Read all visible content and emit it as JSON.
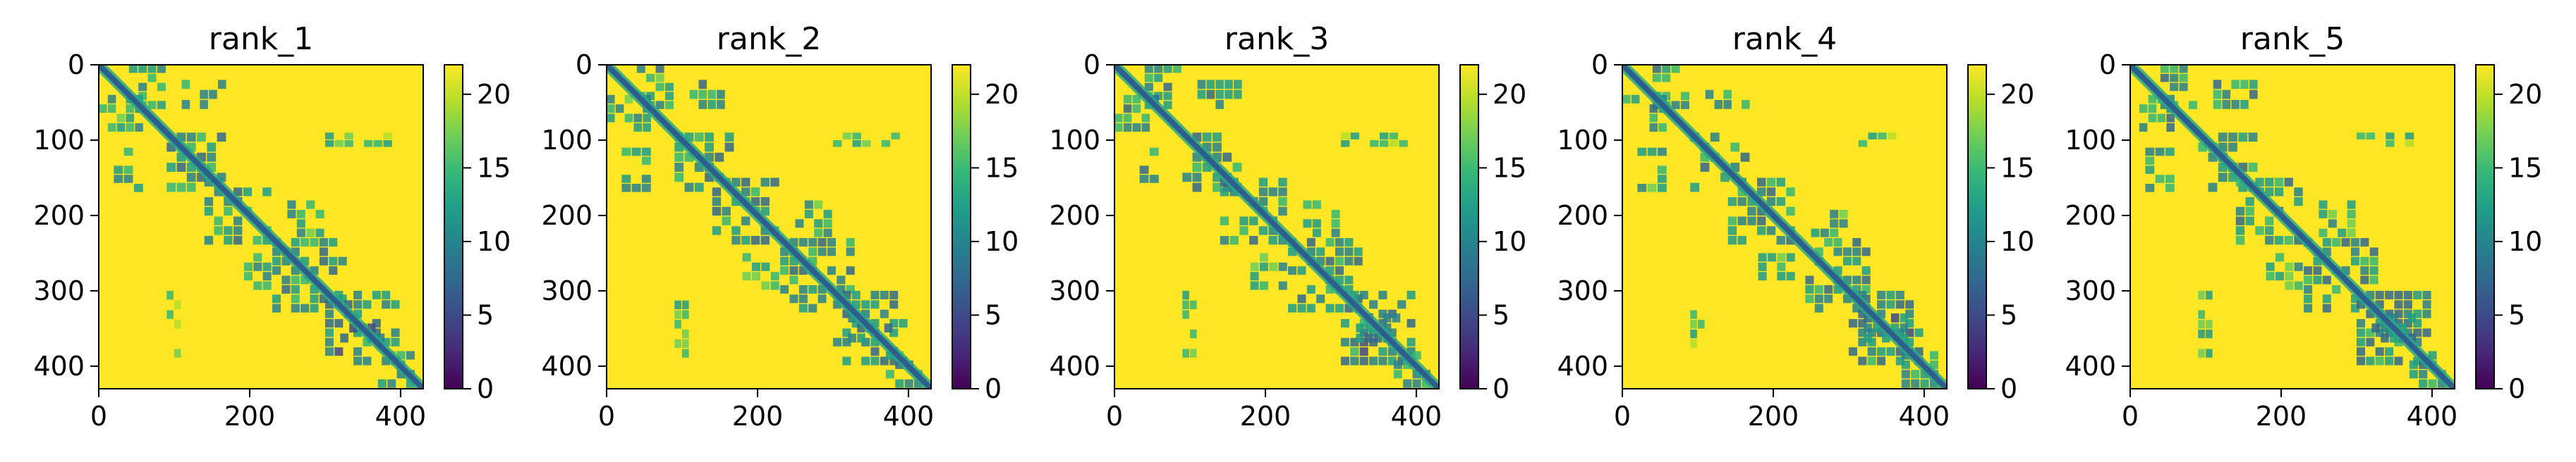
{
  "figure": {
    "colors": {
      "viridis": [
        "#440154",
        "#482878",
        "#3e4989",
        "#31688e",
        "#26828e",
        "#1f9e89",
        "#35b779",
        "#6ece58",
        "#b5de2b",
        "#fde725"
      ],
      "background": "#fde725",
      "diagonal": "#2e5f8c",
      "contact": "#26a58a",
      "contact_light": "#7fd34e"
    }
  },
  "chart_data": [
    {
      "type": "heatmap",
      "title": "rank_1",
      "x_ticks": [
        "0",
        "200",
        "400"
      ],
      "y_ticks": [
        "0",
        "100",
        "200",
        "300",
        "400"
      ],
      "xlim": [
        0,
        430
      ],
      "ylim": [
        430,
        0
      ],
      "colorbar": {
        "ticks": [
          "0",
          "5",
          "10",
          "15",
          "20"
        ],
        "range": [
          0,
          22
        ]
      },
      "matrix_size": 430,
      "diagonal_value": 4,
      "background_value": 22,
      "blocks": [
        {
          "x": [
            40,
            90
          ],
          "y": [
            0,
            60
          ],
          "value": 12
        },
        {
          "x": [
            0,
            60
          ],
          "y": [
            40,
            90
          ],
          "value": 12
        },
        {
          "x": [
            90,
            170
          ],
          "y": [
            90,
            170
          ],
          "value": 11
        },
        {
          "x": [
            20,
            60
          ],
          "y": [
            110,
            170
          ],
          "value": 12
        },
        {
          "x": [
            110,
            170
          ],
          "y": [
            20,
            60
          ],
          "value": 12
        },
        {
          "x": [
            140,
            230
          ],
          "y": [
            150,
            240
          ],
          "value": 11
        },
        {
          "x": [
            230,
            330
          ],
          "y": [
            230,
            330
          ],
          "value": 11
        },
        {
          "x": [
            300,
            400
          ],
          "y": [
            300,
            400
          ],
          "value": 10
        },
        {
          "x": [
            320,
            380
          ],
          "y": [
            330,
            370
          ],
          "value": 9
        },
        {
          "x": [
            370,
            420
          ],
          "y": [
            380,
            430
          ],
          "value": 12
        },
        {
          "x": [
            90,
            110
          ],
          "y": [
            300,
            390
          ],
          "value": 15
        },
        {
          "x": [
            300,
            390
          ],
          "y": [
            90,
            110
          ],
          "value": 15
        },
        {
          "x": [
            250,
            300
          ],
          "y": [
            180,
            230
          ],
          "value": 14
        },
        {
          "x": [
            180,
            230
          ],
          "y": [
            250,
            300
          ],
          "value": 14
        }
      ]
    },
    {
      "type": "heatmap",
      "title": "rank_2",
      "x_ticks": [
        "0",
        "200",
        "400"
      ],
      "y_ticks": [
        "0",
        "100",
        "200",
        "300",
        "400"
      ],
      "xlim": [
        0,
        430
      ],
      "ylim": [
        430,
        0
      ],
      "colorbar": {
        "ticks": [
          "0",
          "5",
          "10",
          "15",
          "20"
        ],
        "range": [
          0,
          22
        ]
      },
      "matrix_size": 430,
      "diagonal_value": 4,
      "background_value": 22,
      "blocks": [
        {
          "x": [
            40,
            90
          ],
          "y": [
            0,
            60
          ],
          "value": 12
        },
        {
          "x": [
            0,
            60
          ],
          "y": [
            40,
            90
          ],
          "value": 12
        },
        {
          "x": [
            90,
            170
          ],
          "y": [
            90,
            170
          ],
          "value": 11
        },
        {
          "x": [
            20,
            60
          ],
          "y": [
            110,
            170
          ],
          "value": 12
        },
        {
          "x": [
            110,
            170
          ],
          "y": [
            20,
            60
          ],
          "value": 12
        },
        {
          "x": [
            140,
            230
          ],
          "y": [
            150,
            240
          ],
          "value": 11
        },
        {
          "x": [
            230,
            330
          ],
          "y": [
            230,
            330
          ],
          "value": 11
        },
        {
          "x": [
            300,
            400
          ],
          "y": [
            300,
            400
          ],
          "value": 10
        },
        {
          "x": [
            320,
            380
          ],
          "y": [
            330,
            370
          ],
          "value": 9
        },
        {
          "x": [
            370,
            420
          ],
          "y": [
            380,
            430
          ],
          "value": 12
        },
        {
          "x": [
            90,
            110
          ],
          "y": [
            300,
            390
          ],
          "value": 15
        },
        {
          "x": [
            300,
            390
          ],
          "y": [
            90,
            110
          ],
          "value": 15
        },
        {
          "x": [
            250,
            300
          ],
          "y": [
            180,
            230
          ],
          "value": 14
        },
        {
          "x": [
            180,
            230
          ],
          "y": [
            250,
            300
          ],
          "value": 14
        }
      ]
    },
    {
      "type": "heatmap",
      "title": "rank_3",
      "x_ticks": [
        "0",
        "200",
        "400"
      ],
      "y_ticks": [
        "0",
        "100",
        "200",
        "300",
        "400"
      ],
      "xlim": [
        0,
        430
      ],
      "ylim": [
        430,
        0
      ],
      "colorbar": {
        "ticks": [
          "0",
          "5",
          "10",
          "15",
          "20"
        ],
        "range": [
          0,
          22
        ]
      },
      "matrix_size": 430,
      "diagonal_value": 4,
      "background_value": 22,
      "blocks": [
        {
          "x": [
            40,
            90
          ],
          "y": [
            0,
            60
          ],
          "value": 12
        },
        {
          "x": [
            0,
            60
          ],
          "y": [
            40,
            90
          ],
          "value": 12
        },
        {
          "x": [
            90,
            170
          ],
          "y": [
            90,
            170
          ],
          "value": 11
        },
        {
          "x": [
            20,
            60
          ],
          "y": [
            110,
            170
          ],
          "value": 12
        },
        {
          "x": [
            110,
            170
          ],
          "y": [
            20,
            60
          ],
          "value": 12
        },
        {
          "x": [
            140,
            230
          ],
          "y": [
            150,
            240
          ],
          "value": 11
        },
        {
          "x": [
            230,
            330
          ],
          "y": [
            230,
            330
          ],
          "value": 11
        },
        {
          "x": [
            300,
            400
          ],
          "y": [
            300,
            400
          ],
          "value": 10
        },
        {
          "x": [
            320,
            380
          ],
          "y": [
            330,
            370
          ],
          "value": 9
        },
        {
          "x": [
            370,
            420
          ],
          "y": [
            380,
            430
          ],
          "value": 12
        },
        {
          "x": [
            90,
            110
          ],
          "y": [
            300,
            390
          ],
          "value": 15
        },
        {
          "x": [
            300,
            390
          ],
          "y": [
            90,
            110
          ],
          "value": 15
        },
        {
          "x": [
            250,
            300
          ],
          "y": [
            180,
            230
          ],
          "value": 14
        },
        {
          "x": [
            180,
            230
          ],
          "y": [
            250,
            300
          ],
          "value": 14
        }
      ]
    },
    {
      "type": "heatmap",
      "title": "rank_4",
      "x_ticks": [
        "0",
        "200",
        "400"
      ],
      "y_ticks": [
        "0",
        "100",
        "200",
        "300",
        "400"
      ],
      "xlim": [
        0,
        430
      ],
      "ylim": [
        430,
        0
      ],
      "colorbar": {
        "ticks": [
          "0",
          "5",
          "10",
          "15",
          "20"
        ],
        "range": [
          0,
          22
        ]
      },
      "matrix_size": 430,
      "diagonal_value": 4,
      "background_value": 22,
      "blocks": [
        {
          "x": [
            40,
            90
          ],
          "y": [
            0,
            60
          ],
          "value": 12
        },
        {
          "x": [
            0,
            60
          ],
          "y": [
            40,
            90
          ],
          "value": 12
        },
        {
          "x": [
            90,
            170
          ],
          "y": [
            90,
            170
          ],
          "value": 11
        },
        {
          "x": [
            20,
            60
          ],
          "y": [
            110,
            170
          ],
          "value": 12
        },
        {
          "x": [
            110,
            170
          ],
          "y": [
            20,
            60
          ],
          "value": 12
        },
        {
          "x": [
            140,
            230
          ],
          "y": [
            150,
            240
          ],
          "value": 11
        },
        {
          "x": [
            230,
            330
          ],
          "y": [
            230,
            330
          ],
          "value": 11
        },
        {
          "x": [
            300,
            400
          ],
          "y": [
            300,
            400
          ],
          "value": 10
        },
        {
          "x": [
            320,
            380
          ],
          "y": [
            330,
            370
          ],
          "value": 9
        },
        {
          "x": [
            370,
            420
          ],
          "y": [
            380,
            430
          ],
          "value": 12
        },
        {
          "x": [
            90,
            110
          ],
          "y": [
            300,
            390
          ],
          "value": 15
        },
        {
          "x": [
            300,
            390
          ],
          "y": [
            90,
            110
          ],
          "value": 15
        },
        {
          "x": [
            250,
            300
          ],
          "y": [
            180,
            230
          ],
          "value": 14
        },
        {
          "x": [
            180,
            230
          ],
          "y": [
            250,
            300
          ],
          "value": 14
        }
      ]
    },
    {
      "type": "heatmap",
      "title": "rank_5",
      "x_ticks": [
        "0",
        "200",
        "400"
      ],
      "y_ticks": [
        "0",
        "100",
        "200",
        "300",
        "400"
      ],
      "xlim": [
        0,
        430
      ],
      "ylim": [
        430,
        0
      ],
      "colorbar": {
        "ticks": [
          "0",
          "5",
          "10",
          "15",
          "20"
        ],
        "range": [
          0,
          22
        ]
      },
      "matrix_size": 430,
      "diagonal_value": 4,
      "background_value": 22,
      "blocks": [
        {
          "x": [
            40,
            90
          ],
          "y": [
            0,
            60
          ],
          "value": 12
        },
        {
          "x": [
            0,
            60
          ],
          "y": [
            40,
            90
          ],
          "value": 12
        },
        {
          "x": [
            90,
            170
          ],
          "y": [
            90,
            170
          ],
          "value": 11
        },
        {
          "x": [
            20,
            60
          ],
          "y": [
            110,
            170
          ],
          "value": 12
        },
        {
          "x": [
            110,
            170
          ],
          "y": [
            20,
            60
          ],
          "value": 12
        },
        {
          "x": [
            140,
            230
          ],
          "y": [
            150,
            240
          ],
          "value": 11
        },
        {
          "x": [
            230,
            330
          ],
          "y": [
            230,
            330
          ],
          "value": 11
        },
        {
          "x": [
            300,
            400
          ],
          "y": [
            300,
            400
          ],
          "value": 10
        },
        {
          "x": [
            320,
            380
          ],
          "y": [
            330,
            370
          ],
          "value": 9
        },
        {
          "x": [
            370,
            420
          ],
          "y": [
            380,
            430
          ],
          "value": 12
        },
        {
          "x": [
            90,
            110
          ],
          "y": [
            300,
            390
          ],
          "value": 15
        },
        {
          "x": [
            300,
            390
          ],
          "y": [
            90,
            110
          ],
          "value": 15
        },
        {
          "x": [
            250,
            300
          ],
          "y": [
            180,
            230
          ],
          "value": 14
        },
        {
          "x": [
            180,
            230
          ],
          "y": [
            250,
            300
          ],
          "value": 14
        }
      ]
    }
  ]
}
